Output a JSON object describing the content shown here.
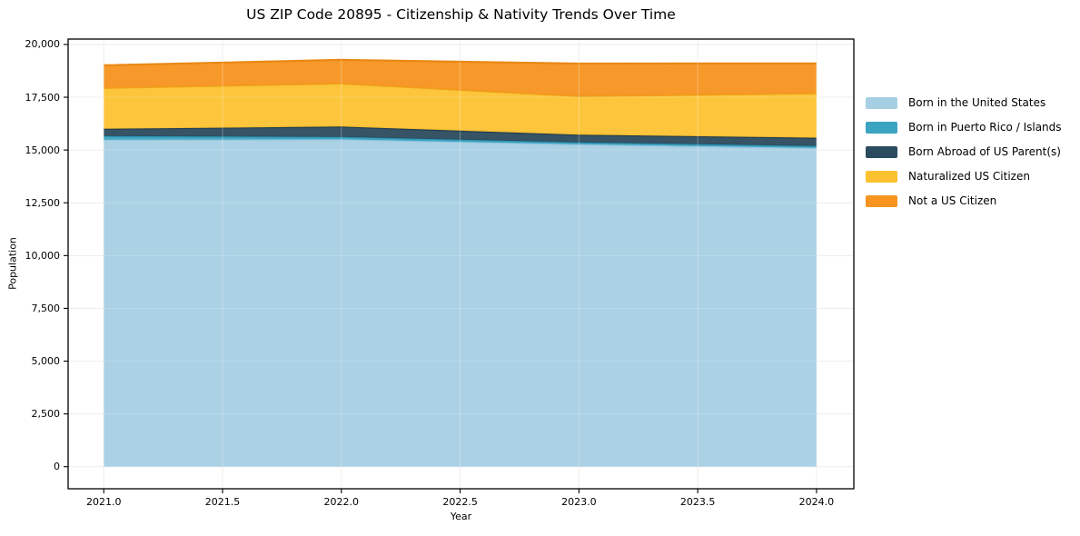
{
  "figure": {
    "background": "#ffffff",
    "border_color": "#000000",
    "gridline_color": "#e8e8e8"
  },
  "chart_data": {
    "type": "area",
    "stacked": true,
    "title": "US ZIP Code 20895 - Citizenship & Nativity Trends Over Time",
    "xlabel": "Year",
    "ylabel": "Population",
    "x": [
      2021,
      2022,
      2023,
      2024
    ],
    "series": [
      {
        "name": "Born in the United States",
        "color": "#a6cfe4",
        "edge_color": "#8ec3dd",
        "values": [
          15490,
          15510,
          15270,
          15100
        ]
      },
      {
        "name": "Born in Puerto Rico / Islands",
        "color": "#3ba4c1",
        "edge_color": "#2e93b0",
        "values": [
          170,
          110,
          90,
          90
        ]
      },
      {
        "name": "Born Abroad of US Parent(s)",
        "color": "#2b4b5e",
        "edge_color": "#213d4c",
        "values": [
          345,
          490,
          365,
          390
        ]
      },
      {
        "name": "Naturalized US Citizen",
        "color": "#fdc230",
        "edge_color": "#eda41b",
        "values": [
          1935,
          2040,
          1825,
          2105
        ]
      },
      {
        "name": "Not a US Citizen",
        "color": "#f7941f",
        "edge_color": "#e98814",
        "values": [
          1070,
          1120,
          1545,
          1415
        ]
      }
    ],
    "xticks": [
      2021.0,
      2021.5,
      2022.0,
      2022.5,
      2023.0,
      2023.5,
      2024.0
    ],
    "xtick_labels": [
      "2021.0",
      "2021.5",
      "2022.0",
      "2022.5",
      "2023.0",
      "2023.5",
      "2024.0"
    ],
    "yticks": [
      0,
      2500,
      5000,
      7500,
      10000,
      12500,
      15000,
      17500,
      20000
    ],
    "ytick_labels": [
      "0",
      "2,500",
      "5,000",
      "7,500",
      "10,000",
      "12,500",
      "15,000",
      "17,500",
      "20,000"
    ],
    "xlim": [
      2020.85,
      2024.157
    ],
    "ylim": [
      -1045,
      20255
    ],
    "grid": true,
    "legend_position": "right"
  }
}
